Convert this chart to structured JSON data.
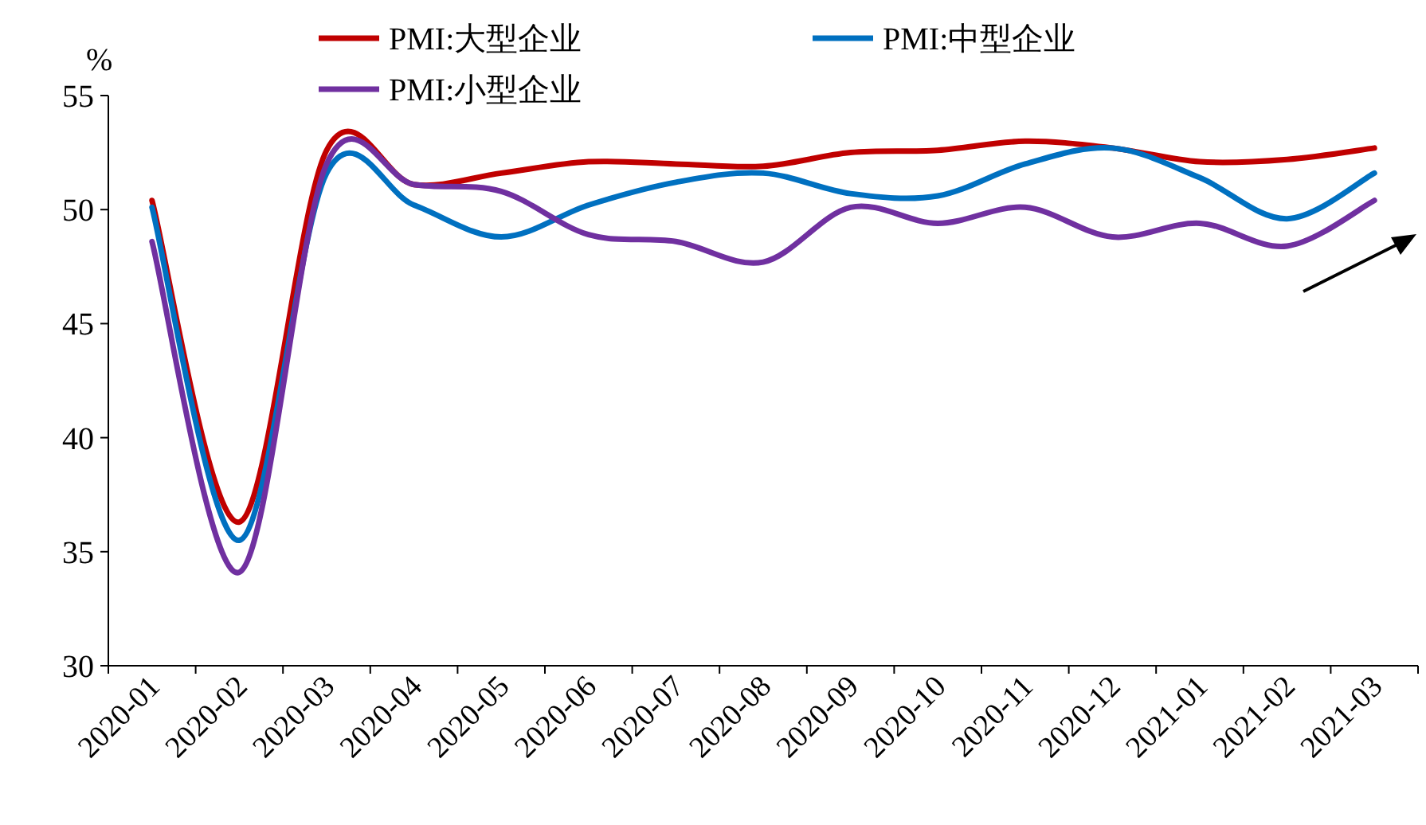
{
  "chart_data": {
    "type": "line",
    "ylabel": "%",
    "categories": [
      "2020-01",
      "2020-02",
      "2020-03",
      "2020-04",
      "2020-05",
      "2020-06",
      "2020-07",
      "2020-08",
      "2020-09",
      "2020-10",
      "2020-11",
      "2020-12",
      "2021-01",
      "2021-02",
      "2021-03"
    ],
    "series": [
      {
        "name": "PMI:大型企业",
        "color": "#c00000",
        "values": [
          50.4,
          36.3,
          52.6,
          51.1,
          51.6,
          52.1,
          52.0,
          51.9,
          52.5,
          52.6,
          53.0,
          52.7,
          52.1,
          52.2,
          52.7
        ]
      },
      {
        "name": "PMI:中型企业",
        "color": "#0070c0",
        "values": [
          50.1,
          35.5,
          51.6,
          50.2,
          48.8,
          50.2,
          51.2,
          51.6,
          50.7,
          50.6,
          52.0,
          52.7,
          51.4,
          49.6,
          51.6
        ]
      },
      {
        "name": "PMI:小型企业",
        "color": "#7030a0",
        "values": [
          48.6,
          34.1,
          52.0,
          51.1,
          50.8,
          48.9,
          48.6,
          47.7,
          50.1,
          49.4,
          50.1,
          48.8,
          49.4,
          48.4,
          50.4
        ]
      }
    ],
    "ylim": [
      30,
      55
    ],
    "yticks": [
      30,
      35,
      40,
      45,
      50,
      55
    ],
    "legend": "top"
  }
}
